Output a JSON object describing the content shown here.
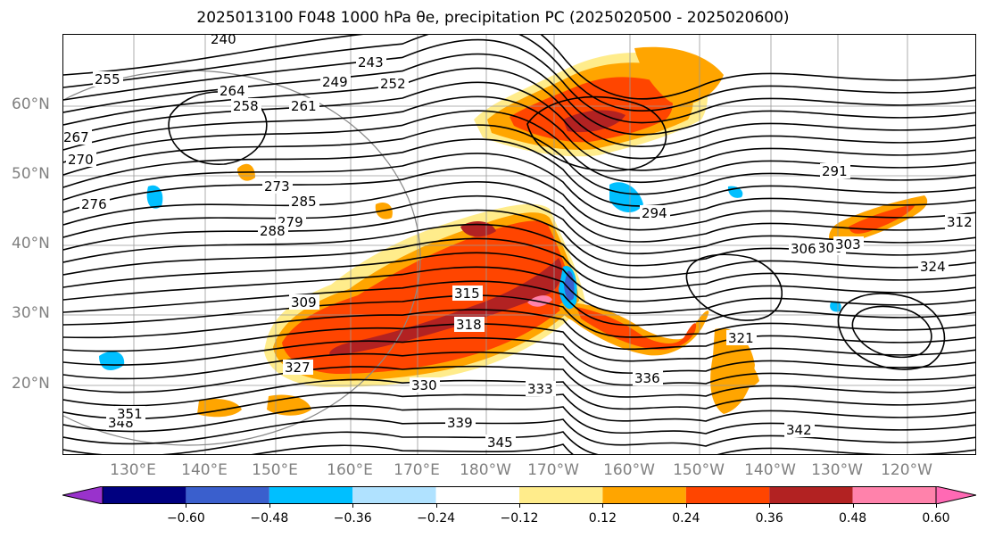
{
  "title": "2025013100 F048 1000 hPa θe, precipitation PC (2025020500 - 2025020600)",
  "map": {
    "lat_labels": [
      "60°N",
      "50°N",
      "40°N",
      "30°N",
      "20°N"
    ],
    "lon_labels": [
      "130°E",
      "140°E",
      "150°E",
      "160°E",
      "170°E",
      "180°W",
      "170°W",
      "160°W",
      "150°W",
      "140°W",
      "130°W",
      "120°W"
    ],
    "contour_labels": [
      "240",
      "243",
      "249",
      "252",
      "255",
      "258",
      "261",
      "264",
      "267",
      "270",
      "273",
      "276",
      "279",
      "285",
      "288",
      "291",
      "294",
      "300",
      "303",
      "306",
      "309",
      "312",
      "315",
      "318",
      "321",
      "324",
      "327",
      "330",
      "333",
      "336",
      "339",
      "342",
      "345",
      "348",
      "351"
    ],
    "contour_color": "#000000",
    "coastline_color": "#000000",
    "grid_color": "#999999"
  },
  "colorbar": {
    "tick_labels": [
      "−0.60",
      "−0.48",
      "−0.36",
      "−0.24",
      "−0.12",
      "0.12",
      "0.24",
      "0.36",
      "0.48",
      "0.60"
    ],
    "colors": [
      "#9932cc",
      "#000080",
      "#3a5fcd",
      "#00bfff",
      "#b0e2ff",
      "#ffffff",
      "#ffec8b",
      "#ffa500",
      "#ff4500",
      "#b22222",
      "#ff82ab",
      "#ff69b4"
    ]
  }
}
